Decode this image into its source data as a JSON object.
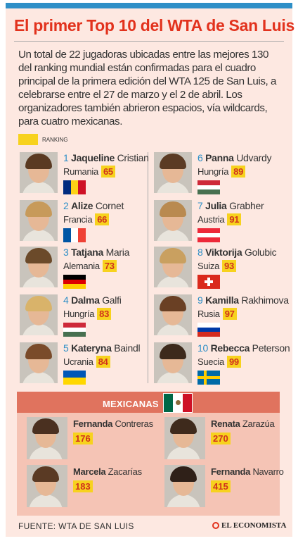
{
  "title": "El primer Top 10 del WTA de San Luis",
  "intro": "Un total de 22 jugadoras ubicadas entre las mejores 130 del ranking mundial están confirmadas para el cuadro principal de la primera edición del WTA 125 de San Luis, a celebrarse entre el 27 de marzo y el 2 de abril. Los organizadores también abrieron espacios, vía wildcards, para cuatro mexicanas.",
  "legend": {
    "label": "RANKING",
    "color": "#f7d21e"
  },
  "players": [
    {
      "num": "1",
      "first": "Jaqueline",
      "last": "Cristian",
      "country": "Rumania",
      "rank": "65",
      "flag": {
        "dir": "v",
        "colors": [
          "#002b7f",
          "#fcd116",
          "#ce1126"
        ]
      }
    },
    {
      "num": "2",
      "first": "Alize",
      "last": "Cornet",
      "country": "Francia",
      "rank": "66",
      "flag": {
        "dir": "v",
        "colors": [
          "#0055a4",
          "#ffffff",
          "#ef4135"
        ]
      }
    },
    {
      "num": "3",
      "first": "Tatjana",
      "last": "Maria",
      "country": "Alemania",
      "rank": "73",
      "flag": {
        "dir": "h",
        "colors": [
          "#000000",
          "#dd0000",
          "#ffce00"
        ]
      }
    },
    {
      "num": "4",
      "first": "Dalma",
      "last": "Galfi",
      "country": "Hungría",
      "rank": "83",
      "flag": {
        "dir": "h",
        "colors": [
          "#ce2939",
          "#ffffff",
          "#477050"
        ]
      }
    },
    {
      "num": "5",
      "first": "Kateryna",
      "last": "Baindl",
      "country": "Ucrania",
      "rank": "84",
      "flag": {
        "dir": "h",
        "colors": [
          "#0057b7",
          "#ffd700"
        ]
      }
    },
    {
      "num": "6",
      "first": "Panna",
      "last": "Udvardy",
      "country": "Hungría",
      "rank": "89",
      "flag": {
        "dir": "h",
        "colors": [
          "#ce2939",
          "#ffffff",
          "#477050"
        ]
      }
    },
    {
      "num": "7",
      "first": "Julia",
      "last": "Grabher",
      "country": "Austria",
      "rank": "91",
      "flag": {
        "dir": "h",
        "colors": [
          "#ed2939",
          "#ffffff",
          "#ed2939"
        ]
      }
    },
    {
      "num": "8",
      "first": "Viktorija",
      "last": "Golubic",
      "country": "Suiza",
      "rank": "93",
      "flag": {
        "dir": "swiss",
        "colors": [
          "#da291c",
          "#ffffff"
        ]
      }
    },
    {
      "num": "9",
      "first": "Kamilla",
      "last": "Rakhimova",
      "country": "Rusia",
      "rank": "97",
      "flag": {
        "dir": "h",
        "colors": [
          "#ffffff",
          "#0039a6",
          "#d52b1e"
        ]
      }
    },
    {
      "num": "10",
      "first": "Rebecca",
      "last": "Peterson",
      "country": "Suecia",
      "rank": "99",
      "flag": {
        "dir": "swede",
        "colors": [
          "#006aa7",
          "#fecc00"
        ]
      }
    }
  ],
  "mexicanas": {
    "title": "MEXICANAS",
    "flag_colors": [
      "#006847",
      "#ffffff",
      "#ce1126"
    ],
    "players": [
      {
        "first": "Fernanda",
        "last": "Contreras",
        "rank": "176"
      },
      {
        "first": "Renata",
        "last": "Zarazúa",
        "rank": "270"
      },
      {
        "first": "Marcela",
        "last": "Zacarías",
        "rank": "183"
      },
      {
        "first": "Fernanda",
        "last": "Navarro",
        "rank": "415"
      }
    ]
  },
  "footer": {
    "source": "FUENTE:  WTA DE SAN LUIS",
    "logo": "EL ECONOMISTA"
  },
  "colors": {
    "accent": "#e2321d",
    "number_blue": "#2e8fc7",
    "highlight": "#f7d21e",
    "panel": "#fde8e1"
  }
}
